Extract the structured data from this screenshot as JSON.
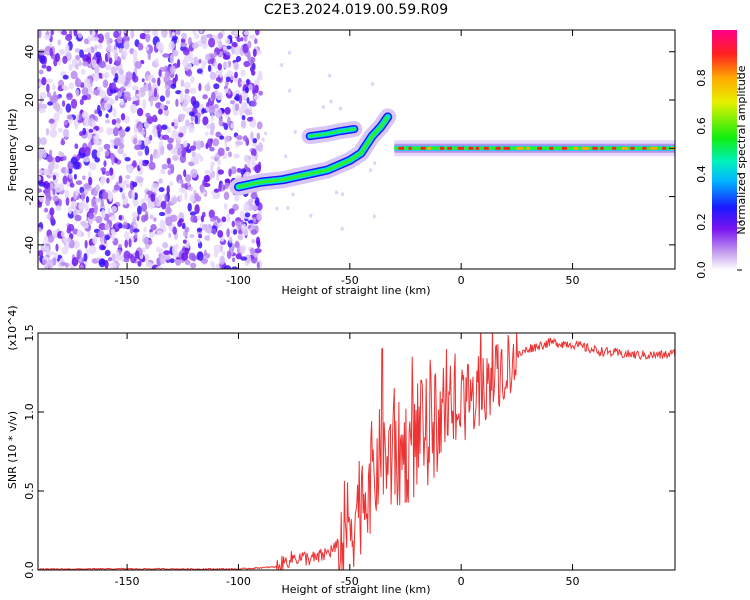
{
  "title": "C2E3.2024.019.00.59.R09",
  "chart_data": [
    {
      "type": "heatmap",
      "xlabel": "Height of straight line (km)",
      "ylabel": "Frequency (Hz)",
      "xlim": [
        -190,
        96
      ],
      "ylim": [
        -50,
        49
      ],
      "x_ticks": [
        "-150",
        "-100",
        "-50",
        "0",
        "50"
      ],
      "y_ticks": [
        "-40",
        "-20",
        "0",
        "20",
        "40"
      ],
      "colorbar": {
        "label": "Normalized spectral amplitude",
        "range": [
          0.0,
          1.0
        ],
        "ticks": [
          "0.0",
          "0.2",
          "0.4",
          "0.6",
          "0.8"
        ],
        "colormap": "rainbow (magenta-white to red)"
      },
      "features": {
        "noise_region_x": [
          -190,
          -90
        ],
        "doppler_trace_1": {
          "x": [
            -100,
            -90,
            -80,
            -70,
            -60,
            -50,
            -45,
            -40,
            -36,
            -33
          ],
          "y": [
            -16,
            -14,
            -13,
            -11,
            -9,
            -5,
            -2,
            5,
            9,
            13
          ]
        },
        "short_trace_2": {
          "x": [
            -68,
            -60,
            -55,
            -48
          ],
          "y": [
            5,
            6,
            7,
            8
          ]
        },
        "carrier_line": {
          "x": [
            -30,
            96
          ],
          "y": 0,
          "peak_amplitude": 1.0
        }
      }
    },
    {
      "type": "line",
      "xlabel": "Height of straight line (km)",
      "ylabel": "SNR (10 * v/v)",
      "y_multiplier": "(x10^4)",
      "xlim": [
        -190,
        96
      ],
      "ylim": [
        0,
        1.5
      ],
      "x_ticks": [
        "-150",
        "-100",
        "-50",
        "0",
        "50"
      ],
      "y_ticks": [
        "0.0",
        "0.5",
        "1.0",
        "1.5"
      ],
      "color": "#ee3333",
      "series": [
        {
          "x": [
            -190,
            -150,
            -100,
            -83,
            -75,
            -65,
            -55,
            -45,
            -40,
            -36,
            -30,
            -20,
            -10,
            0,
            10,
            14,
            20,
            25,
            30,
            40,
            50,
            60,
            70,
            80,
            90,
            96
          ],
          "y": [
            0.005,
            0.007,
            0.006,
            0.02,
            0.08,
            0.07,
            0.15,
            0.45,
            0.6,
            0.7,
            0.7,
            0.8,
            0.95,
            1.0,
            1.15,
            1.2,
            1.3,
            1.35,
            1.4,
            1.44,
            1.43,
            1.39,
            1.37,
            1.36,
            1.36,
            1.37
          ]
        }
      ]
    }
  ]
}
